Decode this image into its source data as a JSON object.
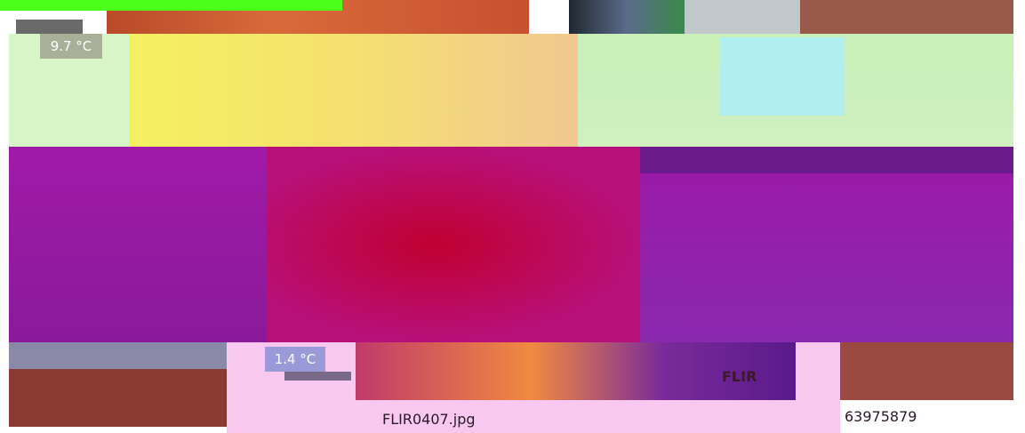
{
  "image": {
    "temperature_max": "9.7 °C",
    "temperature_min": "1.4 °C",
    "logo": "FLIR"
  },
  "footer": {
    "filename": "FLIR0407.jpg",
    "serial": "63975879"
  }
}
